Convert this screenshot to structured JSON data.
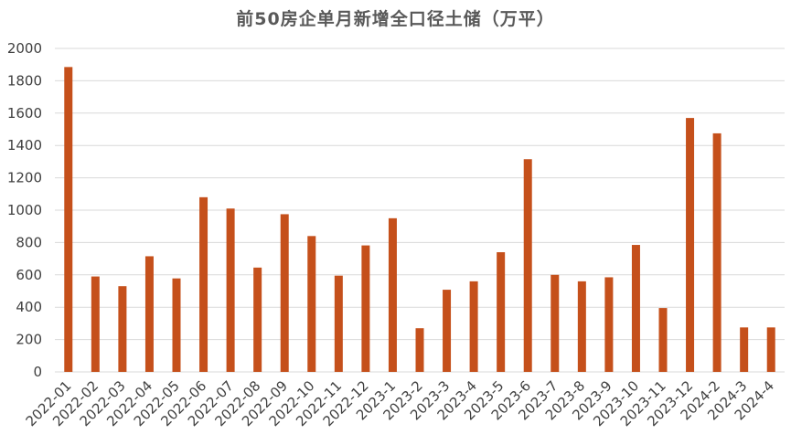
{
  "chart_data": {
    "type": "bar",
    "title": "前50房企单月新增全口径土储（万平）",
    "xlabel": "",
    "ylabel": "",
    "ylim": [
      0,
      2000
    ],
    "yticks": [
      0,
      200,
      400,
      600,
      800,
      1000,
      1200,
      1400,
      1600,
      1800,
      2000
    ],
    "grid": true,
    "legend": "none",
    "bar_color": "#c5501b",
    "categories": [
      "2022-01",
      "2022-02",
      "2022-03",
      "2022-04",
      "2022-05",
      "2022-06",
      "2022-07",
      "2022-08",
      "2022-09",
      "2022-10",
      "2022-11",
      "2022-12",
      "2023-1",
      "2023-2",
      "2023-3",
      "2023-4",
      "2023-5",
      "2023-6",
      "2023-7",
      "2023-8",
      "2023-9",
      "2023-10",
      "2023-11",
      "2023-12",
      "2024-2",
      "2024-3",
      "2024-4"
    ],
    "values": [
      1885,
      590,
      530,
      715,
      578,
      1080,
      1010,
      645,
      975,
      840,
      595,
      782,
      950,
      270,
      508,
      560,
      740,
      1315,
      600,
      560,
      585,
      785,
      395,
      1570,
      1475,
      275,
      275
    ]
  }
}
